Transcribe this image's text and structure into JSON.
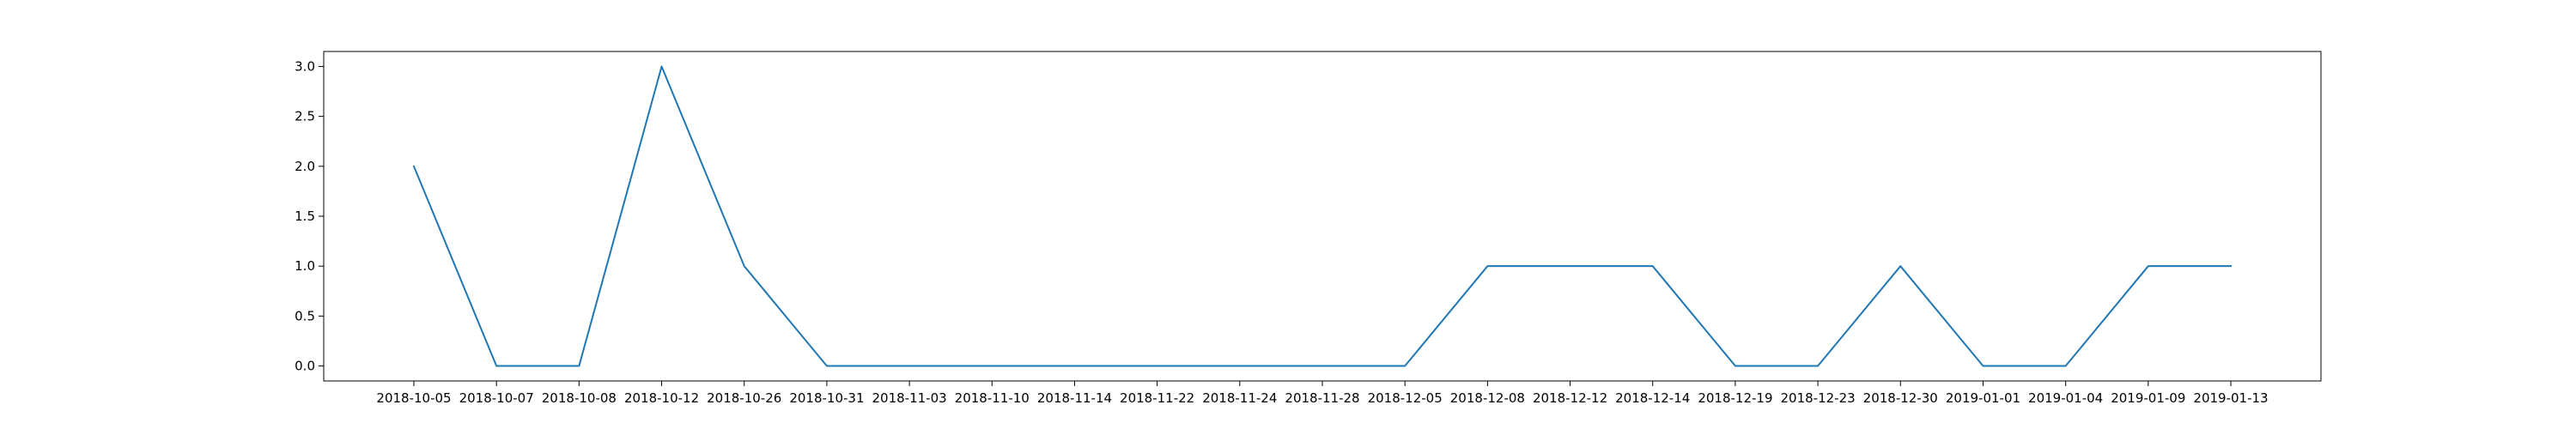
{
  "chart_data": {
    "type": "line",
    "title": "",
    "xlabel": "",
    "ylabel": "",
    "grid": false,
    "legend": "none",
    "categories": [
      "2018-10-05",
      "2018-10-07",
      "2018-10-08",
      "2018-10-12",
      "2018-10-26",
      "2018-10-31",
      "2018-11-03",
      "2018-11-10",
      "2018-11-14",
      "2018-11-22",
      "2018-11-24",
      "2018-11-28",
      "2018-12-05",
      "2018-12-08",
      "2018-12-12",
      "2018-12-14",
      "2018-12-19",
      "2018-12-23",
      "2018-12-30",
      "2019-01-01",
      "2019-01-04",
      "2019-01-09",
      "2019-01-13"
    ],
    "series": [
      {
        "color": "#1f77b4",
        "values": [
          2,
          0,
          0,
          3,
          1,
          0,
          0,
          0,
          0,
          0,
          0,
          0,
          0,
          1,
          1,
          1,
          0,
          0,
          1,
          0,
          0,
          1,
          1
        ]
      }
    ],
    "ylim": [
      -0.15,
      3.15
    ],
    "yticks": [
      0.0,
      0.5,
      1.0,
      1.5,
      2.0,
      2.5,
      3.0
    ],
    "ytick_labels": [
      "0.0",
      "0.5",
      "1.0",
      "1.5",
      "2.0",
      "2.5",
      "3.0"
    ]
  }
}
